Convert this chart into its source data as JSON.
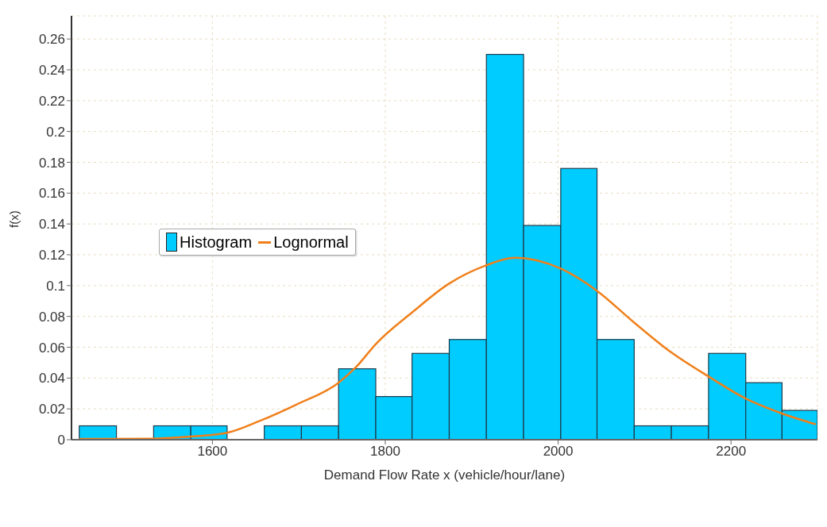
{
  "chart_data": {
    "type": "histogram",
    "xlabel": "Demand Flow Rate x (vehicle/hour/lane)",
    "ylabel": "f(x)",
    "bins": [
      1446,
      1489,
      1532,
      1575,
      1617,
      1660,
      1703,
      1746,
      1789,
      1831,
      1874,
      1917,
      1960,
      2003,
      2045,
      2088,
      2131,
      2174,
      2217,
      2259,
      2300
    ],
    "series": [
      {
        "name": "Histogram",
        "color": "#00ccff",
        "values": [
          0.009,
          0,
          0.009,
          0.009,
          0,
          0.009,
          0.009,
          0.046,
          0.028,
          0.056,
          0.065,
          0.25,
          0.139,
          0.176,
          0.065,
          0.009,
          0.009,
          0.056,
          0.037,
          0.019
        ]
      },
      {
        "name": "Lognormal",
        "type": "line",
        "color": "#f07f1a",
        "x": [
          1446,
          1531,
          1575,
          1618,
          1654,
          1698,
          1746,
          1766,
          1789,
          1832,
          1873,
          1916,
          1950,
          2003,
          2044,
          2088,
          2130,
          2174,
          2216,
          2259,
          2298
        ],
        "values": [
          0.0005,
          0.0007,
          0.002,
          0.0046,
          0.012,
          0.023,
          0.037,
          0.047,
          0.062,
          0.083,
          0.101,
          0.113,
          0.118,
          0.111,
          0.097,
          0.076,
          0.057,
          0.041,
          0.027,
          0.017,
          0.01
        ]
      }
    ],
    "xlim": [
      1437,
      2300
    ],
    "xticks": [
      1600,
      1800,
      2000,
      2200
    ],
    "ylim": [
      0,
      0.275
    ],
    "yticks": [
      0,
      0.02,
      0.04,
      0.06,
      0.08,
      0.1,
      0.12,
      0.14,
      0.16,
      0.18,
      0.2,
      0.22,
      0.24,
      0.26
    ],
    "grid": true,
    "legend": "left",
    "marker": "none",
    "line_style": "solid"
  }
}
